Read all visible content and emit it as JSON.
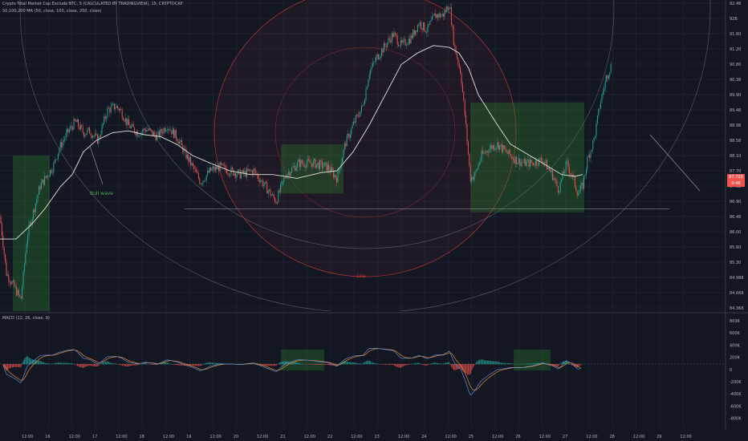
{
  "header": {
    "title": "Crypto Total Market Cap Exclude BTC, 5 (CALCULATED BY TRADINGVIEW), 15, CRYPTOCAP",
    "indicator": "50,100,200 MA (50, close, 100, close, 200, close)",
    "macd_title": "MACD (12, 26, close, 9)"
  },
  "colors": {
    "background": "#131722",
    "grid": "#2a2e39",
    "up": "#26a69a",
    "down": "#ef5350",
    "ma": "#e7e3dc",
    "macd": "#5b8fd6",
    "signal": "#f28a2e",
    "ellipse_white": "#8c8f98",
    "ellipse_red": "#e0403c",
    "box_fill": "#2e7d32",
    "label_bg": "#ef5350",
    "note": "#4caf50"
  },
  "annotations": {
    "bull_wave": "Bull wave",
    "red_marker": "1.618"
  },
  "price_labels": {
    "current": "87.720",
    "sub": "0:48"
  },
  "chart_data": {
    "type": "candlestick",
    "timeframe": "15",
    "ylim": [
      84.3,
      92.5
    ],
    "y_ticks": [
      "92.48",
      "92B",
      "91.60",
      "91.20",
      "90.80",
      "90.38",
      "89.90",
      "89.48",
      "88.98",
      "88.58",
      "88.10",
      "87.70",
      "87.38",
      "86.90",
      "86.48",
      "86.00",
      "85.60",
      "85.30",
      "84.988",
      "84.668",
      "84.368"
    ],
    "x_ticks": [
      "12:00",
      "16",
      "12:00",
      "17",
      "12:00",
      "18",
      "12:00",
      "19",
      "12:00",
      "20",
      "12:00",
      "21",
      "12:00",
      "22",
      "12:00",
      "23",
      "12:00",
      "24",
      "12:00",
      "25",
      "12:00",
      "26",
      "12:00",
      "27",
      "12:00",
      "28",
      "12:00",
      "29",
      "12:00"
    ],
    "price_path": [
      [
        0,
        86.8
      ],
      [
        8,
        85.3
      ],
      [
        16,
        85.0
      ],
      [
        26,
        84.6
      ],
      [
        34,
        86.3
      ],
      [
        50,
        87.6
      ],
      [
        66,
        88.1
      ],
      [
        74,
        88.6
      ],
      [
        84,
        89.0
      ],
      [
        94,
        89.3
      ],
      [
        104,
        89.0
      ],
      [
        112,
        89.05
      ],
      [
        122,
        88.8
      ],
      [
        134,
        89.6
      ],
      [
        144,
        89.7
      ],
      [
        150,
        89.6
      ],
      [
        160,
        89.2
      ],
      [
        172,
        89.0
      ],
      [
        182,
        89.1
      ],
      [
        196,
        88.9
      ],
      [
        208,
        89.2
      ],
      [
        220,
        88.9
      ],
      [
        232,
        88.4
      ],
      [
        240,
        88.1
      ],
      [
        250,
        87.7
      ],
      [
        262,
        88.0
      ],
      [
        274,
        88.1
      ],
      [
        286,
        88.0
      ],
      [
        300,
        87.9
      ],
      [
        316,
        88.0
      ],
      [
        330,
        87.6
      ],
      [
        344,
        87.2
      ],
      [
        356,
        87.9
      ],
      [
        372,
        88.2
      ],
      [
        390,
        88.2
      ],
      [
        408,
        88.1
      ],
      [
        420,
        87.8
      ],
      [
        430,
        88.7
      ],
      [
        442,
        89.3
      ],
      [
        452,
        89.7
      ],
      [
        460,
        90.6
      ],
      [
        470,
        91.0
      ],
      [
        480,
        91.3
      ],
      [
        490,
        91.6
      ],
      [
        500,
        91.3
      ],
      [
        512,
        91.5
      ],
      [
        522,
        91.9
      ],
      [
        532,
        91.7
      ],
      [
        542,
        92.1
      ],
      [
        552,
        92.1
      ],
      [
        560,
        92.4
      ],
      [
        566,
        91.3
      ],
      [
        574,
        90.6
      ],
      [
        580,
        89.3
      ],
      [
        586,
        87.8
      ],
      [
        592,
        87.9
      ],
      [
        600,
        88.4
      ],
      [
        610,
        88.6
      ],
      [
        620,
        88.7
      ],
      [
        630,
        88.5
      ],
      [
        642,
        88.3
      ],
      [
        652,
        88.2
      ],
      [
        664,
        88.2
      ],
      [
        676,
        88.3
      ],
      [
        688,
        87.9
      ],
      [
        696,
        87.5
      ],
      [
        706,
        88.2
      ],
      [
        714,
        87.8
      ],
      [
        720,
        87.4
      ],
      [
        726,
        87.6
      ],
      [
        732,
        88.3
      ],
      [
        740,
        88.8
      ],
      [
        748,
        89.8
      ],
      [
        756,
        90.5
      ],
      [
        762,
        90.8
      ]
    ],
    "ma_path": [
      [
        0,
        86.2
      ],
      [
        20,
        86.2
      ],
      [
        40,
        86.6
      ],
      [
        56,
        87.0
      ],
      [
        66,
        87.3
      ],
      [
        76,
        87.6
      ],
      [
        90,
        87.9
      ],
      [
        104,
        88.5
      ],
      [
        120,
        88.8
      ],
      [
        140,
        89.0
      ],
      [
        160,
        89.05
      ],
      [
        180,
        88.95
      ],
      [
        200,
        88.9
      ],
      [
        220,
        88.7
      ],
      [
        240,
        88.4
      ],
      [
        262,
        88.2
      ],
      [
        286,
        88.0
      ],
      [
        312,
        87.9
      ],
      [
        340,
        87.9
      ],
      [
        370,
        87.8
      ],
      [
        400,
        87.95
      ],
      [
        420,
        88.0
      ],
      [
        440,
        88.5
      ],
      [
        460,
        89.2
      ],
      [
        480,
        90.0
      ],
      [
        500,
        90.8
      ],
      [
        520,
        91.1
      ],
      [
        540,
        91.3
      ],
      [
        560,
        91.25
      ],
      [
        572,
        91.1
      ],
      [
        584,
        90.7
      ],
      [
        596,
        90.0
      ],
      [
        608,
        89.6
      ],
      [
        620,
        89.2
      ],
      [
        636,
        88.7
      ],
      [
        652,
        88.5
      ],
      [
        668,
        88.3
      ],
      [
        684,
        88.1
      ],
      [
        700,
        87.9
      ],
      [
        716,
        87.85
      ],
      [
        726,
        87.9
      ]
    ],
    "boxes": [
      {
        "x1": 16,
        "x2": 62,
        "y1": 88.4,
        "y2": 84.3,
        "label": "box-1"
      },
      {
        "x1": 350,
        "x2": 428,
        "y1": 88.7,
        "y2": 87.4,
        "label": "box-2"
      },
      {
        "x1": 586,
        "x2": 728,
        "y1": 89.8,
        "y2": 86.9,
        "label": "box-3"
      }
    ],
    "horizontal_line": 87.0,
    "macd": {
      "ylim": [
        -880,
        880
      ],
      "y_ticks": [
        "800K",
        "600K",
        "400K",
        "200K",
        "0",
        "-200K",
        "-400K",
        "-600K",
        "-800K"
      ],
      "zero_label": "0",
      "histogram_start_x": 4,
      "histogram_end_x": 724
    }
  }
}
